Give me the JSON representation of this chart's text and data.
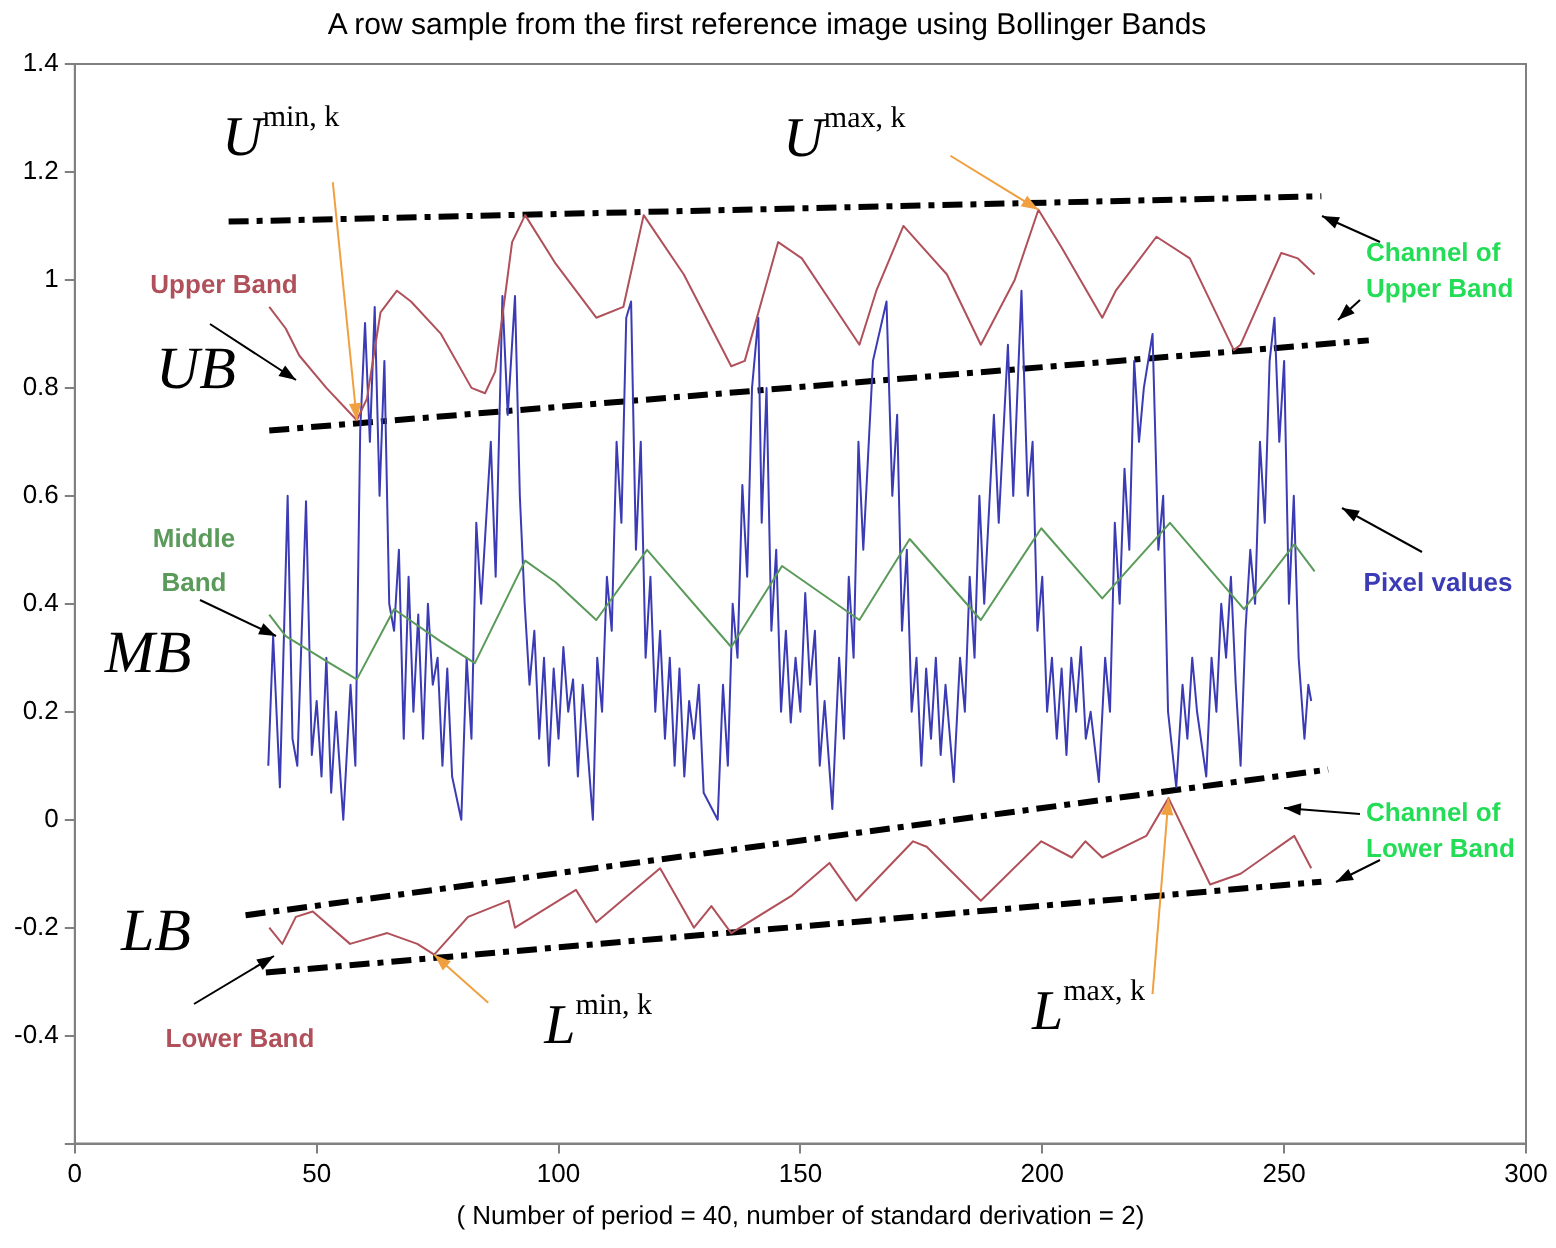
{
  "chart_data": {
    "type": "line",
    "title": "A row sample from the first reference image using Bollinger Bands",
    "xlabel": "( Number of period = 40, number of standard derivation = 2)",
    "xlim": [
      0,
      300
    ],
    "xticks": [
      0,
      50,
      100,
      150,
      200,
      250,
      300
    ],
    "ylim": [
      -0.6,
      1.4
    ],
    "yticks": [
      {
        "value": -0.6,
        "label": null
      },
      -0.4,
      -0.2,
      0,
      0.2,
      0.4,
      0.6,
      0.8,
      1,
      1.2,
      1.4
    ],
    "grid": false,
    "legend": false,
    "marker": "none",
    "line_style": "solid",
    "annotations": [
      "UB",
      "MB",
      "LB",
      {
        "text": "U$^{min, k}$",
        "x": 58.3,
        "y": 0.74
      },
      {
        "text": "U$^{max, k}$",
        "x": 199.2,
        "y": 1.13
      },
      {
        "text": "L$^{min, k}$",
        "x": 74.3,
        "y": -0.25
      },
      {
        "text": "L$^{max, k}$",
        "x": 226.1,
        "y": 0.04
      },
      "Channel of Upper Band",
      "Channel of Lower Band"
    ],
    "series": [
      {
        "name": "Upper Band",
        "color": "#b0505a",
        "x": [
          40.2,
          43.6,
          46.4,
          52,
          58.3,
          60.4,
          63.2,
          66.6,
          69.5,
          75.7,
          82,
          84.8,
          86.9,
          90.4,
          93.1,
          99.4,
          107.8,
          113.4,
          117.6,
          125.9,
          135.7,
          138.5,
          145.4,
          150.3,
          162.2,
          165.7,
          171.3,
          180.3,
          187.3,
          194.3,
          199.2,
          204,
          212.4,
          215.2,
          223.6,
          230.5,
          239.6,
          241,
          249.4,
          252.8,
          256.3
        ],
        "values": [
          0.95,
          0.91,
          0.86,
          0.8,
          0.74,
          0.78,
          0.94,
          0.98,
          0.96,
          0.9,
          0.8,
          0.79,
          0.83,
          1.07,
          1.12,
          1.03,
          0.93,
          0.95,
          1.12,
          1.01,
          0.84,
          0.85,
          1.07,
          1.04,
          0.88,
          0.98,
          1.1,
          1.01,
          0.88,
          1,
          1.13,
          1.06,
          0.93,
          0.98,
          1.08,
          1.04,
          0.87,
          0.88,
          1.05,
          1.04,
          1.01
        ]
      },
      {
        "name": "Lower Band",
        "color": "#b0505a",
        "x": [
          40.2,
          42.9,
          45.7,
          49.2,
          56.9,
          64.6,
          70.8,
          74.3,
          81.3,
          89.7,
          91,
          103.6,
          107.8,
          121,
          128,
          131.6,
          135.7,
          148.3,
          156,
          161.5,
          173.3,
          176.1,
          187.3,
          199.8,
          206.1,
          208.9,
          212.4,
          221.5,
          226.1,
          234.7,
          241,
          252.1,
          255.6
        ],
        "values": [
          -0.2,
          -0.23,
          -0.18,
          -0.17,
          -0.23,
          -0.21,
          -0.23,
          -0.25,
          -0.18,
          -0.15,
          -0.2,
          -0.13,
          -0.19,
          -0.09,
          -0.2,
          -0.16,
          -0.21,
          -0.14,
          -0.08,
          -0.15,
          -0.04,
          -0.05,
          -0.15,
          -0.04,
          -0.07,
          -0.04,
          -0.07,
          -0.03,
          0.04,
          -0.12,
          -0.1,
          -0.03,
          -0.09
        ]
      },
      {
        "name": "Middle Band",
        "color": "#5a9a5a",
        "x": [
          40.2,
          43.6,
          52.7,
          58.3,
          66,
          75.7,
          82.7,
          93.1,
          99.4,
          107.8,
          118.3,
          135.7,
          146.2,
          162.2,
          172.6,
          187.3,
          199.8,
          212.4,
          226.4,
          241.7,
          252.1,
          256.3
        ],
        "values": [
          0.38,
          0.34,
          0.29,
          0.26,
          0.39,
          0.33,
          0.29,
          0.48,
          0.44,
          0.37,
          0.5,
          0.32,
          0.47,
          0.37,
          0.52,
          0.37,
          0.54,
          0.41,
          0.55,
          0.39,
          0.51,
          0.46
        ]
      },
      {
        "name": "Pixel values",
        "color": "#3b3bb5",
        "x": [
          40,
          41,
          42.4,
          44,
          45,
          46,
          47.8,
          49,
          50,
          51,
          52,
          53,
          54,
          55.5,
          57,
          58,
          59,
          60,
          61,
          62,
          63,
          64,
          65,
          66,
          67,
          68,
          69,
          70,
          71,
          72,
          73,
          74,
          75,
          76,
          77,
          78,
          79.9,
          81,
          82,
          83,
          84,
          86,
          87,
          88.4,
          89.5,
          91,
          92,
          93,
          94,
          95,
          96,
          97,
          98,
          99,
          100,
          101,
          102,
          103,
          104,
          105,
          107.1,
          108,
          109,
          110,
          111,
          112,
          113,
          114,
          115,
          116,
          117,
          118,
          119,
          120,
          121,
          122,
          123,
          124,
          125,
          126,
          127,
          128,
          129,
          130,
          132.9,
          134,
          135,
          136,
          137,
          138,
          139,
          140,
          141.3,
          142,
          143,
          144,
          145,
          146,
          147,
          148,
          149,
          150,
          151,
          152,
          153,
          154,
          155,
          156.6,
          158,
          159,
          160,
          161,
          162,
          163,
          165,
          167.8,
          169,
          170,
          171,
          172,
          173,
          174,
          175,
          176,
          177,
          178,
          179,
          180,
          181.7,
          183,
          184,
          185,
          186,
          187,
          188,
          190,
          191,
          192.9,
          194,
          195.7,
          197,
          198,
          199,
          200,
          201,
          202,
          203,
          204,
          205,
          206,
          207,
          208,
          209,
          210,
          211.7,
          213,
          214,
          215,
          216,
          217,
          218,
          219,
          220,
          221,
          222.8,
          224,
          225,
          226,
          227.7,
          229,
          230,
          231,
          232,
          233.9,
          235,
          236,
          237,
          238,
          239,
          240,
          241,
          242,
          243,
          244,
          245,
          246,
          247,
          248,
          249,
          250,
          251,
          252,
          253,
          254.2,
          255,
          255.6
        ],
        "values": [
          0.1,
          0.34,
          0.06,
          0.6,
          0.15,
          0.1,
          0.59,
          0.12,
          0.22,
          0.08,
          0.3,
          0.05,
          0.2,
          0,
          0.25,
          0.1,
          0.72,
          0.92,
          0.7,
          0.95,
          0.6,
          0.85,
          0.4,
          0.35,
          0.5,
          0.15,
          0.45,
          0.2,
          0.38,
          0.15,
          0.4,
          0.25,
          0.3,
          0.1,
          0.28,
          0.08,
          0,
          0.3,
          0.15,
          0.55,
          0.4,
          0.7,
          0.45,
          0.97,
          0.75,
          0.97,
          0.6,
          0.4,
          0.25,
          0.35,
          0.15,
          0.3,
          0.1,
          0.28,
          0.15,
          0.32,
          0.2,
          0.26,
          0.08,
          0.25,
          0,
          0.3,
          0.2,
          0.45,
          0.35,
          0.7,
          0.55,
          0.93,
          0.96,
          0.5,
          0.7,
          0.3,
          0.45,
          0.2,
          0.35,
          0.15,
          0.3,
          0.1,
          0.28,
          0.08,
          0.22,
          0.15,
          0.25,
          0.05,
          0,
          0.25,
          0.1,
          0.4,
          0.3,
          0.62,
          0.45,
          0.8,
          0.93,
          0.55,
          0.8,
          0.35,
          0.5,
          0.2,
          0.35,
          0.18,
          0.3,
          0.2,
          0.42,
          0.25,
          0.35,
          0.1,
          0.22,
          0.02,
          0.3,
          0.15,
          0.45,
          0.3,
          0.7,
          0.5,
          0.85,
          0.96,
          0.6,
          0.75,
          0.35,
          0.5,
          0.2,
          0.3,
          0.1,
          0.28,
          0.15,
          0.3,
          0.12,
          0.25,
          0.07,
          0.3,
          0.2,
          0.45,
          0.3,
          0.6,
          0.4,
          0.75,
          0.55,
          0.88,
          0.6,
          0.98,
          0.6,
          0.7,
          0.35,
          0.45,
          0.2,
          0.3,
          0.15,
          0.28,
          0.12,
          0.3,
          0.2,
          0.32,
          0.15,
          0.2,
          0.07,
          0.3,
          0.2,
          0.55,
          0.4,
          0.65,
          0.5,
          0.85,
          0.7,
          0.8,
          0.9,
          0.5,
          0.6,
          0.2,
          0.06,
          0.25,
          0.15,
          0.3,
          0.2,
          0.08,
          0.3,
          0.2,
          0.4,
          0.3,
          0.45,
          0.25,
          0.1,
          0.35,
          0.5,
          0.4,
          0.7,
          0.55,
          0.85,
          0.93,
          0.7,
          0.85,
          0.4,
          0.6,
          0.3,
          0.15,
          0.25,
          0.22
        ]
      },
      {
        "color": "#000000",
        "line_style": "dashed",
        "x": [
          31.8,
          257.7
        ],
        "values": [
          1.108,
          1.155
        ]
      },
      {
        "color": "#000000",
        "line_style": "dashed",
        "x": [
          40.2,
          267.5
        ],
        "values": [
          0.721,
          0.888
        ]
      },
      {
        "color": "#000000",
        "line_style": "dashed",
        "x": [
          35.3,
          259.1
        ],
        "values": [
          -0.177,
          0.093
        ]
      },
      {
        "color": "#000000",
        "line_style": "dashed",
        "x": [
          39.5,
          257.7
        ],
        "values": [
          -0.283,
          -0.115
        ]
      }
    ]
  }
}
